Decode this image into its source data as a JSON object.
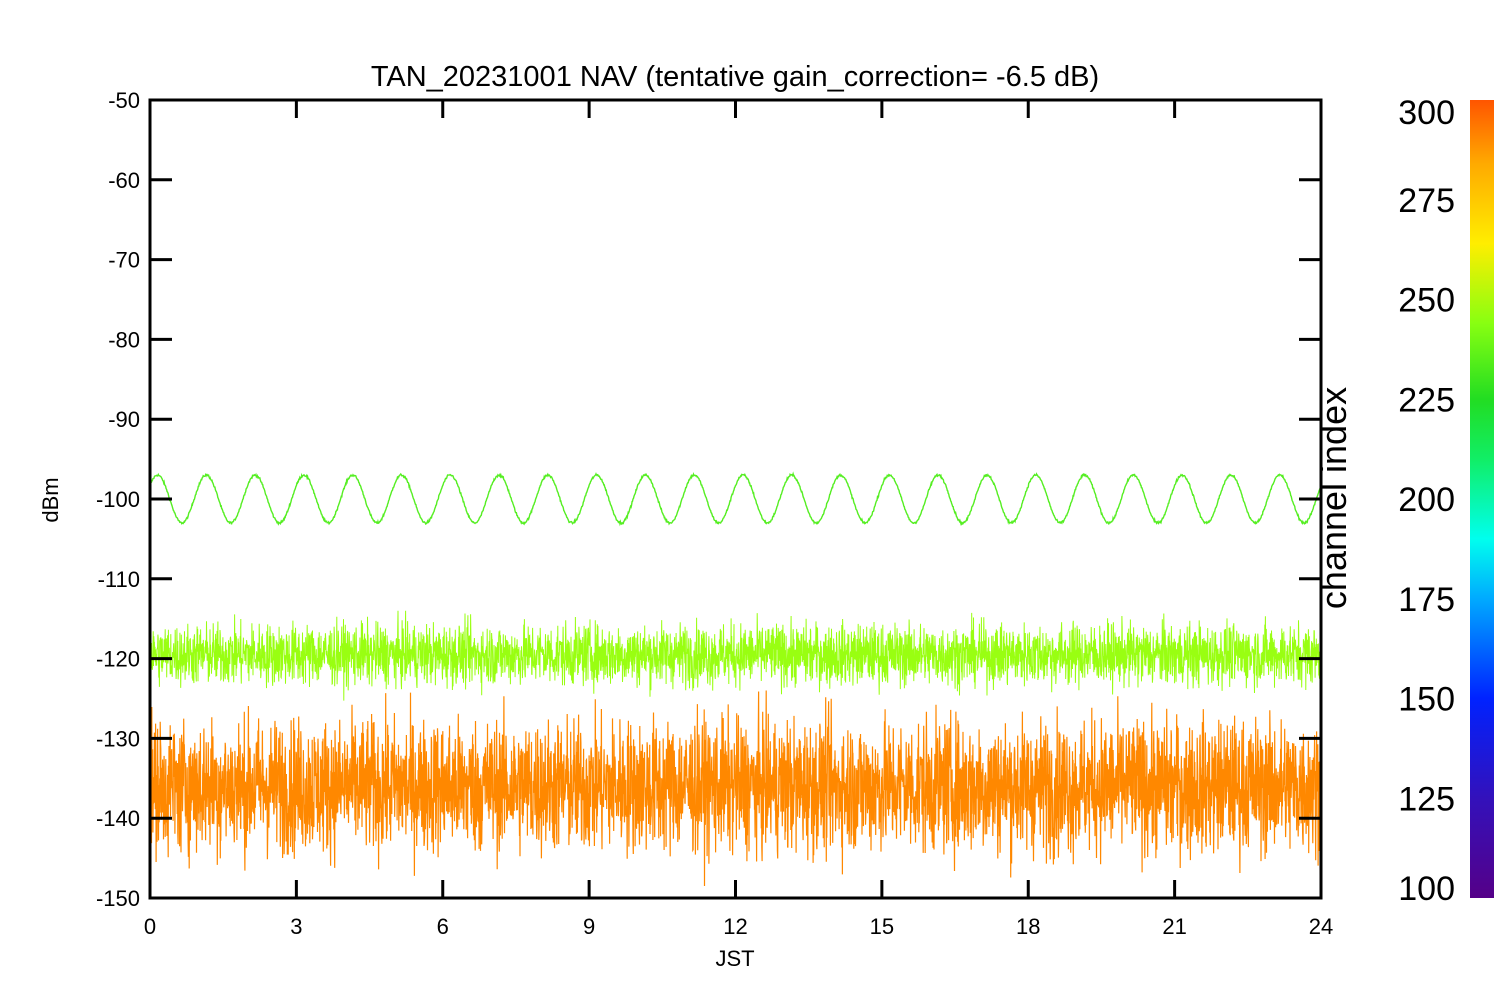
{
  "chart_data": {
    "type": "line",
    "title": "TAN_20231001 NAV (tentative gain_correction= -6.5 dB)",
    "xlabel": "JST",
    "ylabel": "dBm",
    "xlim": [
      0,
      24
    ],
    "ylim": [
      -150,
      -50
    ],
    "xticks": [
      "0",
      "3",
      "6",
      "9",
      "12",
      "15",
      "18",
      "21",
      "24"
    ],
    "yticks": [
      "-50",
      "-60",
      "-70",
      "-80",
      "-90",
      "-100",
      "-110",
      "-120",
      "-130",
      "-140",
      "-150"
    ],
    "grid": false,
    "colorbar": {
      "label": "channel index",
      "range": [
        100,
        300
      ],
      "ticks": [
        "300",
        "275",
        "250",
        "225",
        "200",
        "175",
        "150",
        "125",
        "100"
      ],
      "colormap": "rainbow"
    },
    "series": [
      {
        "channel": 240,
        "color": "#55ee22",
        "description_values": {
          "x": [
            0,
            24
          ],
          "mean_dbm": -100,
          "oscillation_amplitude_db": 3,
          "oscillation_period_hours": 1.0
        }
      },
      {
        "channel": 260,
        "color": "#99ff11",
        "description_values": {
          "x": [
            0,
            24
          ],
          "mean_dbm": -119.5,
          "min_dbm": -126,
          "max_dbm": -114
        }
      },
      {
        "channel": 285,
        "color": "#ff8800",
        "description_values": {
          "x": [
            0,
            24
          ],
          "mean_dbm": -136,
          "min_dbm": -150,
          "max_dbm": -124
        }
      }
    ]
  }
}
